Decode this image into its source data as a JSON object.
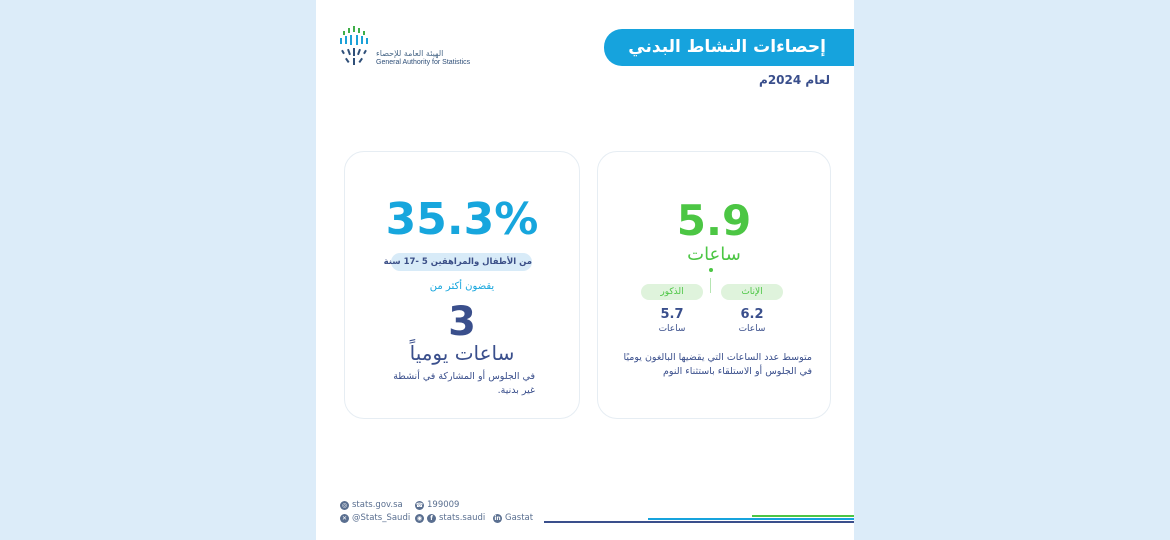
{
  "logo": {
    "arabic": "الهيئة العامة للإحصاء",
    "english": "General Authority for Statistics"
  },
  "header": {
    "title": "إحصاءات النشاط البدني",
    "year": "لعام 2024م"
  },
  "left_stat": {
    "percent": "35.3%",
    "age_group": "من الأطفال والمراهقين 5 -17 سنة",
    "spend_more": "يقضون أكثر من",
    "hours_number": "3",
    "hours_label": "ساعات يومياً",
    "description": "في الجلوس أو المشاركة في أنشطة غير بدنية."
  },
  "right_stat": {
    "average": "5.9",
    "average_unit": "ساعات",
    "female_label": "الإناث",
    "male_label": "الذكور",
    "female_value": "6.2",
    "male_value": "5.7",
    "value_unit": "ساعات",
    "description": "متوسط عدد الساعات التي يقضيها البالغون يوميًا في الجلوس أو الاستلقاء باستثناء النوم"
  },
  "footer": {
    "website": "stats.gov.sa",
    "phone": "199009",
    "twitter": "@Stats_Saudi",
    "social": "stats.saudi",
    "linkedin": "Gastat"
  },
  "colors": {
    "accent_blue": "#16a3dd",
    "accent_green": "#4cc644",
    "navy": "#3a4f8c"
  }
}
